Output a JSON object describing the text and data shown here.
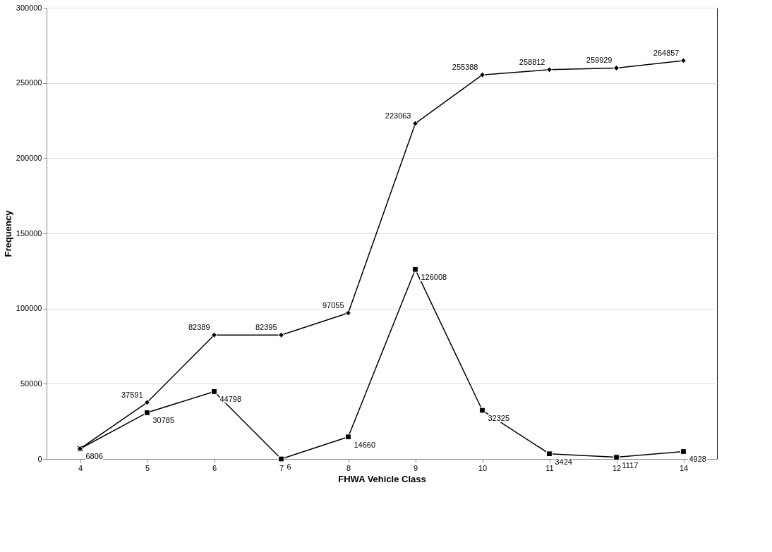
{
  "chart_data": {
    "type": "line",
    "xlabel": "FHWA Vehicle Class",
    "ylabel": "Frequency",
    "categories": [
      "4",
      "5",
      "6",
      "7",
      "8",
      "9",
      "10",
      "11",
      "12",
      "14"
    ],
    "ylim": [
      0,
      300000
    ],
    "yticks": [
      0,
      50000,
      100000,
      150000,
      200000,
      250000,
      300000
    ],
    "grid": "y",
    "line_style": "solid",
    "series": [
      {
        "color": "#000000",
        "marker": "diamond",
        "values": [
          6806,
          37591,
          82389,
          82395,
          97055,
          223063,
          255388,
          258812,
          259929,
          264857
        ],
        "value_labels": [
          null,
          "37591",
          "82389",
          "82395",
          "97055",
          "223063",
          "255388",
          "258812",
          "259929",
          "264857"
        ]
      },
      {
        "color": "#000000",
        "marker": "square",
        "values": [
          6806,
          30785,
          44798,
          6,
          14660,
          126008,
          32325,
          3424,
          1117,
          4928
        ],
        "value_labels": [
          "6806",
          "30785",
          "44798",
          "6",
          "14660",
          "126008",
          "32325",
          "3424",
          "1117",
          "4928"
        ]
      }
    ]
  }
}
